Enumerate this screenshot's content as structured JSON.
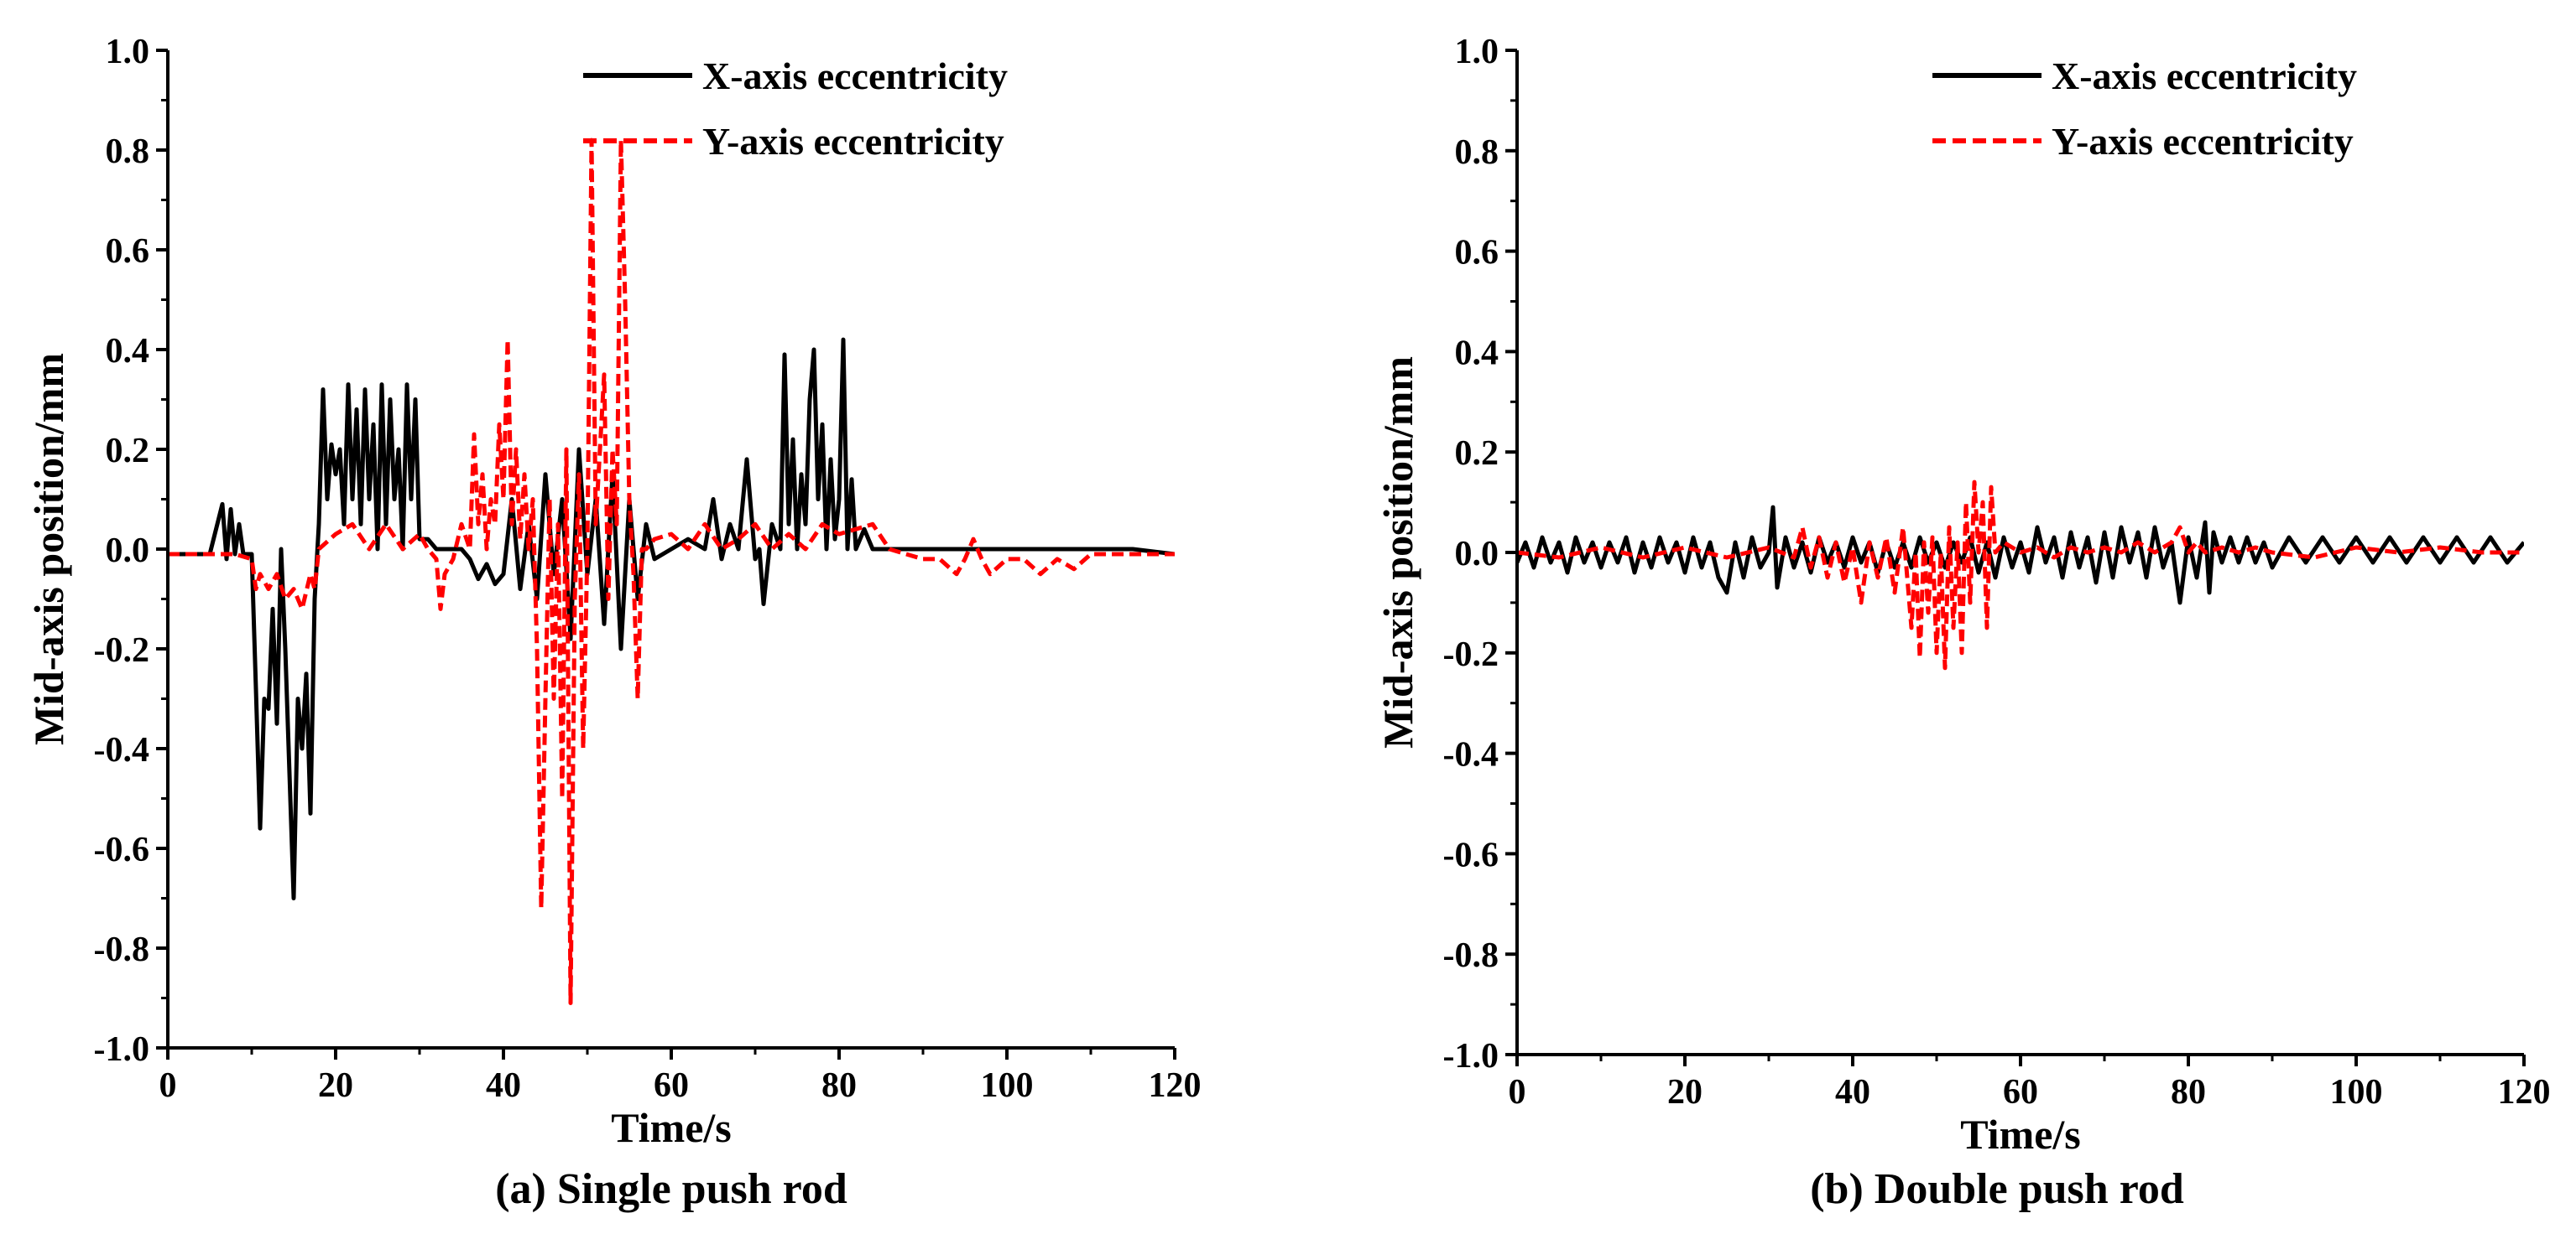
{
  "chart_data": [
    {
      "type": "line",
      "caption": "(a) Single push rod",
      "xlabel": "Time/s",
      "ylabel": "Mid-axis position/mm",
      "xlim": [
        0,
        120
      ],
      "ylim": [
        -1.0,
        1.0
      ],
      "xticks": [
        "0",
        "20",
        "40",
        "60",
        "80",
        "100",
        "120"
      ],
      "yticks": [
        "-1.0",
        "-0.8",
        "-0.6",
        "-0.4",
        "-0.2",
        "0.0",
        "0.2",
        "0.4",
        "0.6",
        "0.8",
        "1.0"
      ],
      "grid": false,
      "legend_position": "top-right",
      "series": [
        {
          "name": "X-axis eccentricity",
          "color": "#000000",
          "dash": "solid",
          "x": [
            0,
            5,
            6.5,
            7,
            7.5,
            8,
            8.5,
            9,
            10,
            10.5,
            11,
            11.5,
            12,
            12.5,
            13,
            13.5,
            14,
            14.5,
            15,
            15.5,
            16,
            16.5,
            17,
            17.5,
            18,
            18.5,
            19,
            19.5,
            20,
            20.5,
            21,
            21.5,
            22,
            22.5,
            23,
            23.5,
            24,
            24.5,
            25,
            25.5,
            26,
            26.5,
            27,
            27.5,
            28,
            28.5,
            29,
            29.5,
            30,
            31,
            32,
            33,
            34,
            35,
            36,
            37,
            38,
            39,
            40,
            41,
            42,
            43,
            44,
            45,
            46,
            47,
            48,
            49,
            50,
            51,
            52,
            53,
            54,
            55,
            56,
            57,
            58,
            60,
            62,
            64,
            65,
            66,
            67,
            68,
            69,
            70,
            70.5,
            71,
            72,
            73,
            73.5,
            74,
            74.5,
            75,
            75.5,
            76,
            76.5,
            77,
            77.5,
            78,
            78.5,
            79,
            79.5,
            80,
            80.5,
            81,
            81.5,
            82,
            83,
            84,
            86,
            90,
            95,
            100,
            105,
            110,
            115,
            120
          ],
          "values": [
            -0.01,
            -0.01,
            0.09,
            -0.02,
            0.08,
            -0.01,
            0.05,
            -0.01,
            -0.01,
            -0.28,
            -0.56,
            -0.3,
            -0.32,
            -0.12,
            -0.35,
            0.0,
            -0.2,
            -0.45,
            -0.7,
            -0.3,
            -0.4,
            -0.25,
            -0.53,
            -0.1,
            0.05,
            0.32,
            0.1,
            0.21,
            0.15,
            0.2,
            0.05,
            0.33,
            0.1,
            0.28,
            0.05,
            0.32,
            0.1,
            0.25,
            0.0,
            0.33,
            0.05,
            0.3,
            0.1,
            0.2,
            0.0,
            0.33,
            0.1,
            0.3,
            0.02,
            0.02,
            0.0,
            0.0,
            0.0,
            0.0,
            -0.02,
            -0.06,
            -0.03,
            -0.07,
            -0.05,
            0.1,
            -0.08,
            0.05,
            -0.1,
            0.15,
            -0.05,
            0.1,
            -0.18,
            0.2,
            -0.05,
            0.1,
            -0.15,
            0.15,
            -0.2,
            0.1,
            -0.1,
            0.05,
            -0.02,
            0.0,
            0.02,
            0.0,
            0.1,
            -0.02,
            0.05,
            0.0,
            0.18,
            -0.02,
            0.0,
            -0.11,
            0.05,
            0.0,
            0.39,
            0.05,
            0.22,
            0.0,
            0.15,
            0.05,
            0.3,
            0.4,
            0.1,
            0.25,
            0.0,
            0.18,
            0.02,
            0.1,
            0.42,
            0.0,
            0.14,
            0.0,
            0.04,
            0.0,
            0.0,
            0.0,
            0.0,
            0.0,
            0.0,
            0.0,
            0.0,
            -0.01
          ]
        },
        {
          "name": "Y-axis eccentricity",
          "color": "#ff0000",
          "dash": "dashed",
          "x": [
            0,
            8,
            10,
            10.5,
            11,
            12,
            13,
            14,
            15,
            16,
            17,
            17.5,
            18,
            20,
            22,
            24,
            26,
            28,
            30,
            31,
            32,
            32.5,
            33,
            34,
            35,
            36,
            36.5,
            37,
            37.5,
            38,
            38.5,
            39,
            39.5,
            40,
            40.5,
            41,
            41.5,
            42,
            42.5,
            43,
            43.5,
            44,
            44.5,
            45,
            45.5,
            46,
            46.5,
            47,
            47.5,
            48,
            48.5,
            49,
            49.5,
            50,
            50.5,
            51,
            51.5,
            52,
            52.5,
            53,
            53.5,
            54,
            54.5,
            55,
            55.5,
            56,
            56.5,
            57,
            58,
            60,
            62,
            64,
            66,
            68,
            70,
            72,
            74,
            76,
            78,
            80,
            82,
            84,
            86,
            88,
            90,
            92,
            94,
            95,
            96,
            97,
            98,
            100,
            102,
            104,
            106,
            108,
            110,
            115,
            120
          ],
          "values": [
            -0.01,
            -0.01,
            -0.02,
            -0.08,
            -0.05,
            -0.08,
            -0.05,
            -0.1,
            -0.08,
            -0.12,
            -0.05,
            -0.08,
            0.0,
            0.03,
            0.05,
            0.0,
            0.05,
            0.0,
            0.03,
            0.0,
            -0.02,
            -0.12,
            -0.05,
            -0.02,
            0.05,
            0.0,
            0.23,
            0.05,
            0.15,
            0.0,
            0.1,
            0.05,
            0.25,
            0.1,
            0.42,
            0.05,
            0.2,
            0.02,
            0.15,
            0.0,
            0.1,
            -0.2,
            -0.72,
            -0.3,
            0.1,
            -0.3,
            0.05,
            -0.5,
            0.2,
            -0.91,
            -0.1,
            0.15,
            -0.4,
            0.0,
            0.82,
            0.05,
            0.2,
            0.35,
            -0.1,
            0.2,
            0.05,
            0.82,
            0.5,
            0.1,
            -0.05,
            -0.3,
            0.0,
            0.0,
            0.02,
            0.03,
            0.0,
            0.05,
            0.0,
            0.02,
            0.05,
            0.0,
            0.03,
            0.0,
            0.05,
            0.03,
            0.04,
            0.05,
            0.0,
            -0.01,
            -0.02,
            -0.02,
            -0.05,
            -0.02,
            0.02,
            -0.02,
            -0.05,
            -0.02,
            -0.02,
            -0.05,
            -0.02,
            -0.04,
            -0.01,
            -0.01,
            -0.01
          ]
        }
      ]
    },
    {
      "type": "line",
      "caption": "(b) Double push rod",
      "xlabel": "Time/s",
      "ylabel": "Mid-axis position/mm",
      "xlim": [
        0,
        120
      ],
      "ylim": [
        -1.0,
        1.0
      ],
      "xticks": [
        "0",
        "20",
        "40",
        "60",
        "80",
        "100",
        "120"
      ],
      "yticks": [
        "-1.0",
        "-0.8",
        "-0.6",
        "-0.4",
        "-0.2",
        "0.0",
        "0.2",
        "0.4",
        "0.6",
        "0.8",
        "1.0"
      ],
      "grid": false,
      "legend_position": "top-right",
      "series": [
        {
          "name": "X-axis eccentricity",
          "color": "#000000",
          "dash": "solid",
          "x": [
            0,
            1,
            2,
            3,
            4,
            5,
            6,
            7,
            8,
            9,
            10,
            11,
            12,
            13,
            14,
            15,
            16,
            17,
            18,
            19,
            20,
            21,
            22,
            23,
            24,
            25,
            26,
            27,
            28,
            29,
            30,
            30.5,
            31,
            32,
            33,
            34,
            35,
            36,
            37,
            38,
            39,
            40,
            41,
            42,
            43,
            44,
            45,
            46,
            47,
            48,
            49,
            50,
            51,
            52,
            53,
            54,
            55,
            56,
            57,
            58,
            59,
            60,
            61,
            62,
            63,
            64,
            65,
            66,
            67,
            68,
            69,
            70,
            71,
            72,
            73,
            74,
            75,
            76,
            77,
            78,
            79,
            80,
            81,
            82,
            82.5,
            83,
            84,
            85,
            86,
            87,
            88,
            89,
            90,
            92,
            94,
            96,
            98,
            100,
            102,
            104,
            106,
            108,
            110,
            112,
            114,
            116,
            118,
            120
          ],
          "values": [
            -0.02,
            0.02,
            -0.03,
            0.03,
            -0.02,
            0.02,
            -0.04,
            0.03,
            -0.02,
            0.02,
            -0.03,
            0.02,
            -0.02,
            0.03,
            -0.04,
            0.02,
            -0.03,
            0.03,
            -0.02,
            0.02,
            -0.04,
            0.03,
            -0.03,
            0.02,
            -0.05,
            -0.08,
            0.02,
            -0.05,
            0.03,
            -0.03,
            0.0,
            0.09,
            -0.07,
            0.03,
            -0.03,
            0.02,
            -0.04,
            0.03,
            -0.02,
            0.02,
            -0.03,
            0.03,
            -0.02,
            0.02,
            -0.04,
            0.02,
            -0.03,
            0.02,
            -0.03,
            0.03,
            -0.02,
            0.02,
            -0.03,
            0.02,
            -0.02,
            0.03,
            -0.04,
            0.02,
            -0.05,
            0.03,
            -0.03,
            0.02,
            -0.04,
            0.05,
            -0.02,
            0.03,
            -0.05,
            0.04,
            -0.03,
            0.03,
            -0.06,
            0.04,
            -0.05,
            0.05,
            -0.02,
            0.04,
            -0.05,
            0.05,
            -0.03,
            0.02,
            -0.1,
            0.03,
            -0.05,
            0.06,
            -0.08,
            0.04,
            -0.02,
            0.03,
            -0.02,
            0.03,
            -0.02,
            0.02,
            -0.03,
            0.03,
            -0.02,
            0.03,
            -0.02,
            0.03,
            -0.02,
            0.03,
            -0.02,
            0.03,
            -0.02,
            0.03,
            -0.02,
            0.03,
            -0.02,
            0.02
          ]
        },
        {
          "name": "Y-axis eccentricity",
          "color": "#ff0000",
          "dash": "dashed",
          "x": [
            0,
            5,
            10,
            15,
            20,
            25,
            30,
            33,
            34,
            35,
            36,
            37,
            38,
            39,
            40,
            41,
            42,
            43,
            44,
            45,
            46,
            47,
            47.5,
            48,
            48.5,
            49,
            49.5,
            50,
            50.5,
            51,
            51.5,
            52,
            52.5,
            53,
            53.5,
            54,
            54.5,
            55,
            55.5,
            56,
            56.5,
            57,
            58,
            60,
            62,
            64,
            66,
            68,
            70,
            72,
            74,
            76,
            78,
            79,
            80,
            81,
            82,
            84,
            86,
            88,
            90,
            95,
            100,
            105,
            110,
            115,
            120
          ],
          "values": [
            0.0,
            -0.01,
            0.01,
            -0.01,
            0.01,
            -0.01,
            0.01,
            -0.01,
            0.05,
            -0.03,
            0.03,
            -0.05,
            0.02,
            -0.06,
            0.01,
            -0.1,
            0.02,
            -0.05,
            0.03,
            -0.08,
            0.05,
            -0.15,
            0.0,
            -0.21,
            0.02,
            -0.12,
            0.03,
            -0.2,
            0.0,
            -0.23,
            0.05,
            -0.15,
            0.02,
            -0.2,
            0.1,
            -0.1,
            0.14,
            0.0,
            0.1,
            -0.15,
            0.13,
            0.0,
            0.02,
            0.0,
            0.01,
            -0.01,
            0.01,
            0.0,
            0.01,
            0.0,
            0.02,
            0.0,
            0.02,
            0.05,
            0.0,
            0.02,
            0.0,
            0.01,
            0.0,
            0.01,
            0.0,
            -0.01,
            0.01,
            0.0,
            0.01,
            0.0,
            0.0
          ]
        }
      ]
    }
  ]
}
